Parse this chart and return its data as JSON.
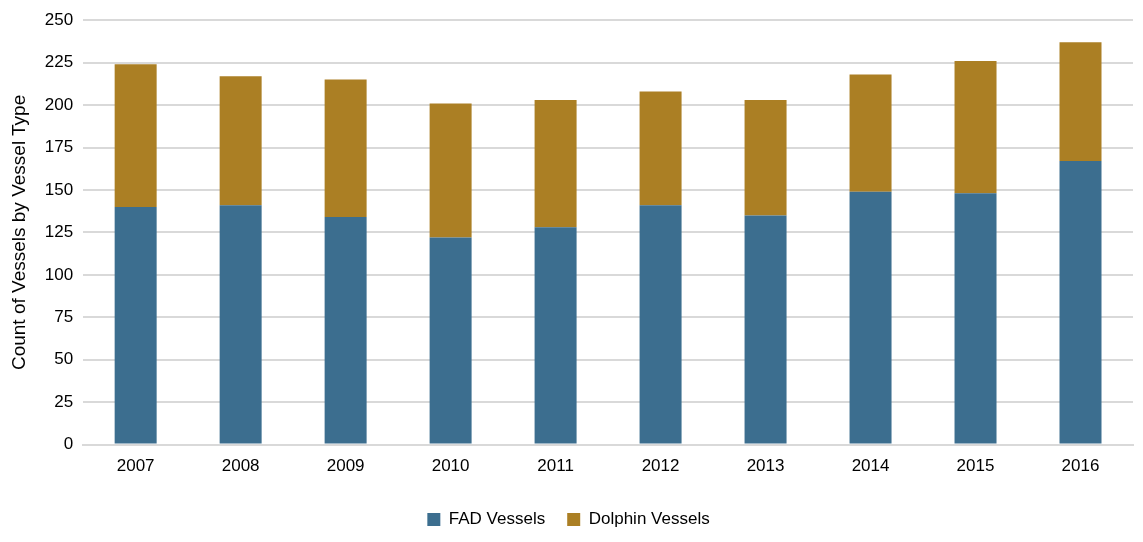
{
  "chart_data": {
    "type": "bar",
    "stacked": true,
    "ylabel": "Count of Vessels by Vessel Type",
    "categories": [
      "2007",
      "2008",
      "2009",
      "2010",
      "2011",
      "2012",
      "2013",
      "2014",
      "2015",
      "2016"
    ],
    "series": [
      {
        "name": "FAD Vessels",
        "color": "#3c6e8f",
        "values": [
          140,
          141,
          134,
          122,
          128,
          141,
          135,
          149,
          148,
          167
        ]
      },
      {
        "name": "Dolphin Vessels",
        "color": "#ab7f24",
        "values": [
          84,
          76,
          81,
          79,
          75,
          67,
          68,
          69,
          78,
          70
        ]
      }
    ],
    "ylim": [
      0,
      250
    ],
    "yticks": [
      0,
      25,
      50,
      75,
      100,
      125,
      150,
      175,
      200,
      225,
      250
    ],
    "grid": "y",
    "legend": "bottom"
  }
}
